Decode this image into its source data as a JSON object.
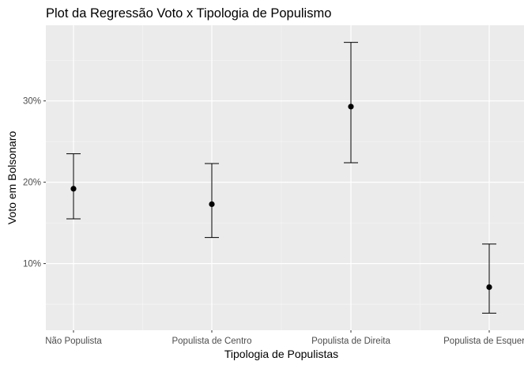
{
  "chart_data": {
    "type": "errorbar",
    "title": "Plot da Regressão Voto x Tipologia de Populismo",
    "xlabel": "Tipologia de Populistas",
    "ylabel": "Voto em Bolsonaro",
    "categories": [
      "Não Populista",
      "Populista de Centro",
      "Populista de Direita",
      "Populista de Esquerda"
    ],
    "points": [
      {
        "category": "Não Populista",
        "estimate": 19.2,
        "lower": 15.5,
        "upper": 23.5
      },
      {
        "category": "Populista de Centro",
        "estimate": 17.3,
        "lower": 13.2,
        "upper": 22.3
      },
      {
        "category": "Populista de Direita",
        "estimate": 29.3,
        "lower": 22.4,
        "upper": 37.2
      },
      {
        "category": "Populista de Esquerda",
        "estimate": 7.1,
        "lower": 3.9,
        "upper": 12.4
      }
    ],
    "ylim": [
      1.8,
      39.3
    ],
    "yticks": [
      10,
      20,
      30
    ],
    "ytick_labels": [
      "10%",
      "20%",
      "30%"
    ],
    "minor_yticks": [
      5,
      15,
      25,
      35
    ],
    "grid": true
  }
}
